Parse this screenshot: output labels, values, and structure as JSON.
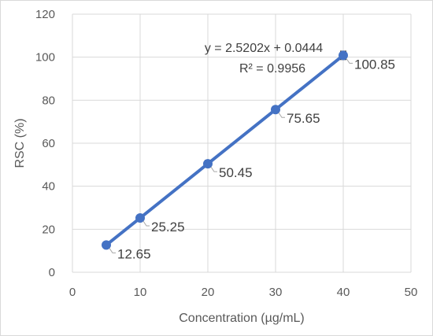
{
  "chart_data": {
    "type": "scatter",
    "title": "",
    "xlabel": "Concentration (µg/mL)",
    "ylabel": "RSC (%)",
    "xlim": [
      0,
      50
    ],
    "ylim": [
      0,
      120
    ],
    "x_ticks": [
      "0",
      "10",
      "20",
      "30",
      "40",
      "50"
    ],
    "y_ticks": [
      "0",
      "20",
      "40",
      "60",
      "80",
      "100",
      "120"
    ],
    "grid": true,
    "legend": "none",
    "series": [
      {
        "x": [
          5,
          10,
          20,
          30,
          40
        ],
        "y": [
          12.65,
          25.25,
          50.45,
          75.65,
          100.85
        ],
        "error": [
          0.4,
          0.6,
          1.5,
          1.4,
          1.9
        ],
        "labels": [
          "12.65",
          "25.25",
          "50.45",
          "75.65",
          "100.85"
        ]
      }
    ],
    "trendline": {
      "slope": 2.5202,
      "intercept": 0.0444,
      "equation": "y = 2.5202x + 0.0444",
      "r2": "R² = 0.9956"
    },
    "colors": {
      "series": "#4472c4",
      "grid": "#d9d9d9",
      "text": "#595959",
      "error_bar": "#404040"
    }
  }
}
